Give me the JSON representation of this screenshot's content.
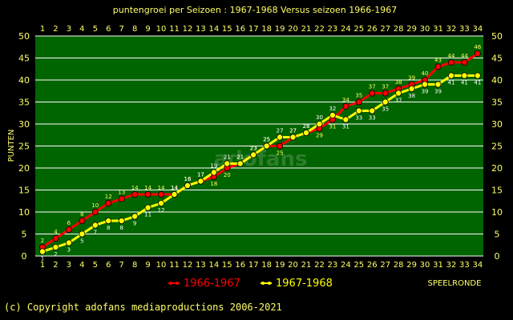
{
  "chart_data": {
    "type": "line",
    "title": "puntengroei per Seizoen : 1967-1968 Versus seizoen 1966-1967",
    "xlabel": "SPEELRONDE",
    "ylabel": "PUNTEN",
    "xlim": [
      1,
      34
    ],
    "ylim": [
      0,
      50
    ],
    "ytick_step": 5,
    "grid": true,
    "legend_placement": "bottom-center",
    "x": [
      1,
      2,
      3,
      4,
      5,
      6,
      7,
      8,
      9,
      10,
      11,
      12,
      13,
      14,
      15,
      16,
      17,
      18,
      19,
      20,
      21,
      22,
      23,
      24,
      25,
      26,
      27,
      28,
      29,
      30,
      31,
      32,
      33,
      34
    ],
    "series": [
      {
        "name": "1966-1967",
        "color": "#ff0000",
        "values": [
          2,
          4,
          6,
          8,
          10,
          12,
          13,
          14,
          14,
          14,
          14,
          16,
          17,
          18,
          20,
          21,
          23,
          25,
          25,
          27,
          28,
          29,
          31,
          34,
          35,
          37,
          37,
          38,
          39,
          40,
          43,
          44,
          44,
          46
        ]
      },
      {
        "name": "1967-1968",
        "color": "#ffff00",
        "values": [
          1,
          2,
          3,
          5,
          7,
          8,
          8,
          9,
          11,
          12,
          14,
          16,
          17,
          19,
          21,
          21,
          23,
          25,
          27,
          27,
          28,
          30,
          32,
          31,
          33,
          33,
          35,
          37,
          38,
          39,
          39,
          41,
          41,
          41
        ]
      }
    ]
  },
  "colors": {
    "background": "#000000",
    "plot_area": "#006400",
    "grid": "#ffffff",
    "text": "#ffff66",
    "watermark": "#2e7d2e"
  },
  "watermark_text": "adofans",
  "copyright": "(c) Copyright adofans mediaproductions 2006-2021"
}
